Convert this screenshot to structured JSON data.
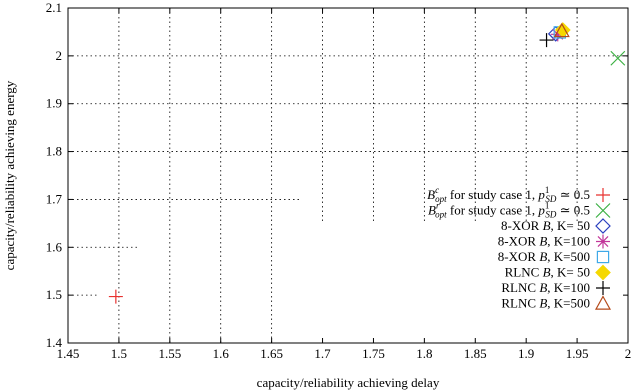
{
  "chart_data": {
    "type": "scatter",
    "xlabel": "capacity/reliability achieving delay",
    "ylabel": "capacity/reliability achieving energy",
    "xlim": [
      1.45,
      2.0
    ],
    "ylim": [
      1.4,
      2.1
    ],
    "x_ticks": [
      1.45,
      1.5,
      1.55,
      1.6,
      1.65,
      1.7,
      1.75,
      1.8,
      1.85,
      1.9,
      1.95,
      2.0
    ],
    "x_tick_labels": [
      "1.45",
      "1.5",
      "1.55",
      "1.6",
      "1.65",
      "1.7",
      "1.75",
      "1.8",
      "1.85",
      "1.9",
      "1.95",
      "2"
    ],
    "y_ticks": [
      1.4,
      1.5,
      1.6,
      1.7,
      1.8,
      1.9,
      2.0,
      2.1
    ],
    "y_tick_labels": [
      "1.4",
      "1.5",
      "1.6",
      "1.7",
      "1.8",
      "1.9",
      "2",
      "2.1"
    ],
    "grid": true,
    "legend_position": "right",
    "series": [
      {
        "name_parts": {
          "math": "B",
          "sup": "c",
          "sub": "opt",
          "text": " for study case 1, ",
          "p": "p",
          "psup": "1",
          "psub": "SD",
          "tail": " ≃ 0.5"
        },
        "marker": "plus",
        "color": "#e8312f",
        "points": [
          [
            1.497,
            1.497
          ]
        ]
      },
      {
        "name_parts": {
          "math": "B",
          "sup": "r",
          "sub": "opt",
          "text": " for study case 1, ",
          "p": "p",
          "psup": "1",
          "psub": "SD",
          "tail": " ≃ 0.5"
        },
        "marker": "x",
        "color": "#3cb043",
        "points": [
          [
            1.99,
            1.995
          ]
        ]
      },
      {
        "name": "8-XOR B, K= 50",
        "marker": "diamond",
        "color": "#2a3fbf",
        "points": [
          [
            1.929,
            2.046
          ]
        ]
      },
      {
        "name": "8-XOR B, K=100",
        "marker": "star",
        "color": "#c2379a",
        "points": [
          [
            1.931,
            2.045
          ]
        ]
      },
      {
        "name": "8-XOR B, K=500",
        "marker": "square",
        "color": "#3fa9e8",
        "points": [
          [
            1.933,
            2.049
          ]
        ]
      },
      {
        "name": "RLNC B, K= 50",
        "marker": "filled-diamond",
        "color": "#f5d800",
        "points": [
          [
            1.936,
            2.054
          ]
        ]
      },
      {
        "name": "RLNC B, K=100",
        "marker": "plus",
        "color": "#000000",
        "points": [
          [
            1.92,
            2.033
          ]
        ]
      },
      {
        "name": "RLNC B, K=500",
        "marker": "triangle",
        "color": "#b54a1a",
        "points": [
          [
            1.935,
            2.052
          ]
        ]
      }
    ],
    "legend_labels": [
      {
        "pre": "8-XOR ",
        "mid": "B",
        "post": ", K= 50"
      },
      {
        "pre": "8-XOR ",
        "mid": "B",
        "post": ", K=100"
      },
      {
        "pre": "8-XOR ",
        "mid": "B",
        "post": ", K=500"
      },
      {
        "pre": "RLNC ",
        "mid": "B",
        "post": ", K= 50"
      },
      {
        "pre": "RLNC ",
        "mid": "B",
        "post": ", K=100"
      },
      {
        "pre": "RLNC ",
        "mid": "B",
        "post": ", K=500"
      }
    ]
  }
}
